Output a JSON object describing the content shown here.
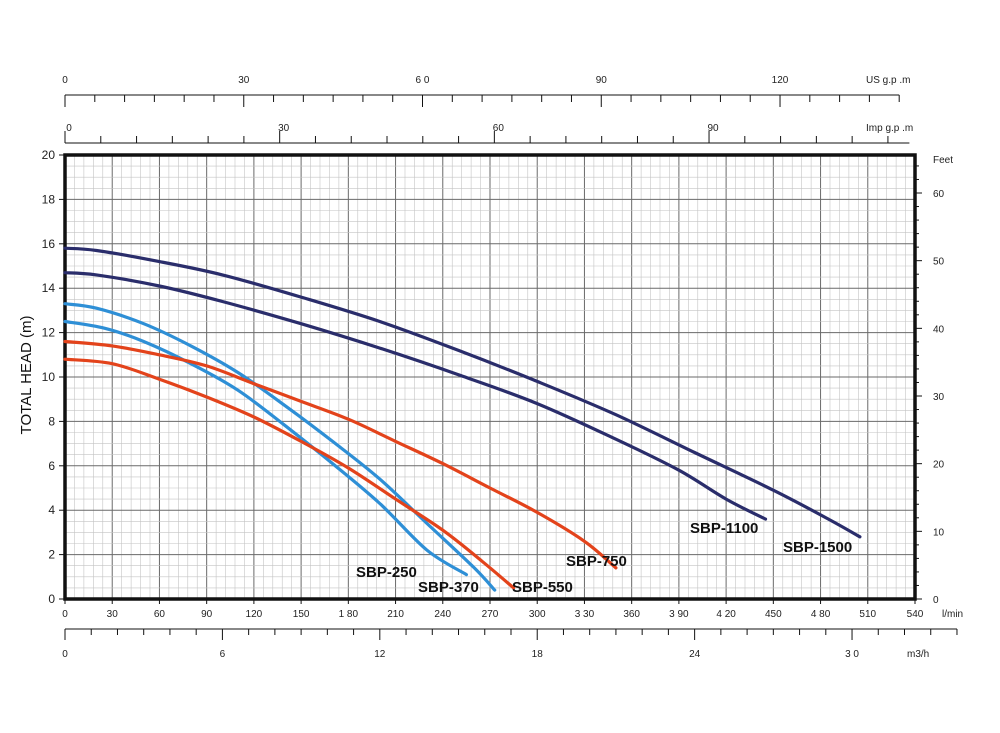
{
  "chart_data": {
    "type": "line",
    "ylabel": "TOTAL HEAD (m)",
    "xlabel": "l/min",
    "xlim": [
      0,
      540
    ],
    "ylim": [
      0,
      20
    ],
    "y_ticks": [
      0,
      2,
      4,
      6,
      8,
      10,
      12,
      14,
      16,
      18,
      20
    ],
    "x_ticks": [
      0,
      30,
      60,
      90,
      120,
      150,
      180,
      210,
      240,
      270,
      300,
      330,
      360,
      390,
      420,
      450,
      480,
      510,
      540
    ],
    "x_tick_labels": [
      "0",
      "30",
      "60",
      "90",
      "120",
      "150",
      "1 80",
      "210",
      "240",
      "270",
      "300",
      "3 30",
      "360",
      "3 90",
      "4 20",
      "450",
      "4 80",
      "510",
      "540"
    ],
    "feet_axis": {
      "label": "Feet",
      "ticks": [
        0,
        10,
        20,
        30,
        40,
        50,
        60
      ],
      "tick_labels": [
        "0",
        "10",
        "20",
        "30",
        "40",
        "50",
        "60"
      ]
    },
    "m3h_axis": {
      "label": "m3/h",
      "ticks": [
        0,
        6,
        12,
        18,
        24,
        30
      ],
      "tick_labels": [
        "0",
        "6",
        "12",
        "18",
        "24",
        "3 0"
      ]
    },
    "usgpm_axis": {
      "label": "US g.p .m",
      "ticks": [
        0,
        30,
        60,
        90,
        120
      ],
      "tick_labels": [
        "0",
        "30",
        "6 0",
        "90",
        "120"
      ]
    },
    "impgpm_axis": {
      "label": "Imp g.p .m",
      "ticks": [
        0,
        30,
        60,
        90
      ],
      "tick_labels": [
        "0",
        "30",
        "60",
        "90"
      ]
    },
    "grid": true,
    "series": [
      {
        "name": "SBP-250",
        "color": "#2e8fd6",
        "points": [
          [
            0,
            12.5
          ],
          [
            25,
            12.2
          ],
          [
            50,
            11.6
          ],
          [
            80,
            10.6
          ],
          [
            110,
            9.4
          ],
          [
            140,
            7.8
          ],
          [
            170,
            6.1
          ],
          [
            200,
            4.3
          ],
          [
            230,
            2.2
          ],
          [
            255,
            1.1
          ]
        ]
      },
      {
        "name": "SBP-370",
        "color": "#2e8fd6",
        "points": [
          [
            0,
            13.3
          ],
          [
            20,
            13.1
          ],
          [
            50,
            12.4
          ],
          [
            80,
            11.4
          ],
          [
            110,
            10.2
          ],
          [
            140,
            8.7
          ],
          [
            170,
            7.1
          ],
          [
            200,
            5.4
          ],
          [
            230,
            3.4
          ],
          [
            260,
            1.4
          ],
          [
            273,
            0.4
          ]
        ]
      },
      {
        "name": "SBP-550",
        "color": "#e3431b",
        "points": [
          [
            0,
            10.8
          ],
          [
            30,
            10.6
          ],
          [
            60,
            9.9
          ],
          [
            90,
            9.1
          ],
          [
            120,
            8.2
          ],
          [
            150,
            7.1
          ],
          [
            180,
            5.9
          ],
          [
            210,
            4.5
          ],
          [
            240,
            3.1
          ],
          [
            265,
            1.7
          ],
          [
            285,
            0.5
          ]
        ]
      },
      {
        "name": "SBP-750",
        "color": "#e3431b",
        "points": [
          [
            0,
            11.6
          ],
          [
            30,
            11.4
          ],
          [
            60,
            11
          ],
          [
            90,
            10.5
          ],
          [
            120,
            9.7
          ],
          [
            150,
            8.9
          ],
          [
            180,
            8.1
          ],
          [
            210,
            7.1
          ],
          [
            240,
            6.1
          ],
          [
            270,
            5.0
          ],
          [
            300,
            3.9
          ],
          [
            330,
            2.6
          ],
          [
            350,
            1.4
          ]
        ]
      },
      {
        "name": "SBP-1100",
        "color": "#2a2d6b",
        "points": [
          [
            0,
            14.7
          ],
          [
            20,
            14.6
          ],
          [
            60,
            14.1
          ],
          [
            100,
            13.4
          ],
          [
            150,
            12.4
          ],
          [
            200,
            11.3
          ],
          [
            250,
            10.1
          ],
          [
            300,
            8.8
          ],
          [
            350,
            7.2
          ],
          [
            390,
            5.8
          ],
          [
            420,
            4.5
          ],
          [
            445,
            3.6
          ]
        ]
      },
      {
        "name": "SBP-1500",
        "color": "#2a2d6b",
        "points": [
          [
            0,
            15.8
          ],
          [
            20,
            15.7
          ],
          [
            60,
            15.2
          ],
          [
            100,
            14.6
          ],
          [
            150,
            13.6
          ],
          [
            200,
            12.5
          ],
          [
            250,
            11.2
          ],
          [
            300,
            9.8
          ],
          [
            350,
            8.3
          ],
          [
            400,
            6.6
          ],
          [
            450,
            4.9
          ],
          [
            485,
            3.6
          ],
          [
            505,
            2.8
          ]
        ]
      }
    ],
    "series_labels": [
      "SBP-250",
      "SBP-370",
      "SBP-550",
      "SBP-750",
      "SBP-1100",
      "SBP-1500"
    ]
  }
}
